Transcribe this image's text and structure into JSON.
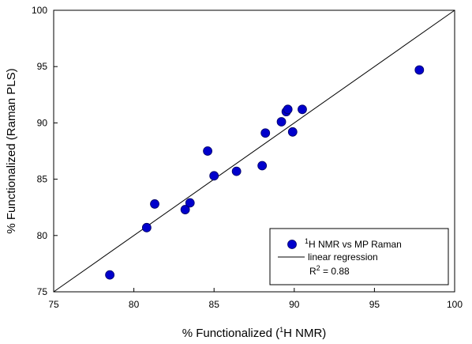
{
  "chart_data": {
    "type": "scatter",
    "xlabel": "% Functionalized  (1H NMR)",
    "xlabel_parts": {
      "before": "% Functionalized  (",
      "sup": "1",
      "after": "H NMR)"
    },
    "ylabel": "% Functionalized (Raman PLS)",
    "xlim": [
      75,
      100
    ],
    "ylim": [
      75,
      100
    ],
    "xticks": [
      "75",
      "80",
      "85",
      "90",
      "95",
      "100"
    ],
    "yticks": [
      "75",
      "80",
      "85",
      "90",
      "95",
      "100"
    ],
    "grid": false,
    "legend_position": "bottom-right",
    "series": [
      {
        "name": "1H NMR vs MP Raman",
        "name_parts": {
          "sup": "1",
          "text": "H NMR vs MP Raman"
        },
        "color": "#0000CC",
        "points": [
          {
            "x": 78.5,
            "y": 76.5
          },
          {
            "x": 80.8,
            "y": 80.7
          },
          {
            "x": 81.3,
            "y": 82.8
          },
          {
            "x": 83.2,
            "y": 82.3
          },
          {
            "x": 83.5,
            "y": 82.9
          },
          {
            "x": 84.6,
            "y": 87.5
          },
          {
            "x": 85.0,
            "y": 85.3
          },
          {
            "x": 86.4,
            "y": 85.7
          },
          {
            "x": 88.0,
            "y": 86.2
          },
          {
            "x": 88.2,
            "y": 89.1
          },
          {
            "x": 89.2,
            "y": 90.1
          },
          {
            "x": 89.5,
            "y": 91.0
          },
          {
            "x": 89.6,
            "y": 91.2
          },
          {
            "x": 89.9,
            "y": 89.2
          },
          {
            "x": 90.5,
            "y": 91.2
          },
          {
            "x": 97.8,
            "y": 94.7
          }
        ]
      }
    ],
    "regression": {
      "name": "linear regression",
      "line": [
        {
          "x": 75,
          "y": 75
        },
        {
          "x": 100,
          "y": 100
        }
      ],
      "color": "#000000"
    },
    "r_squared": {
      "label": "R",
      "sup": "2",
      "value": " = 0.88"
    }
  }
}
